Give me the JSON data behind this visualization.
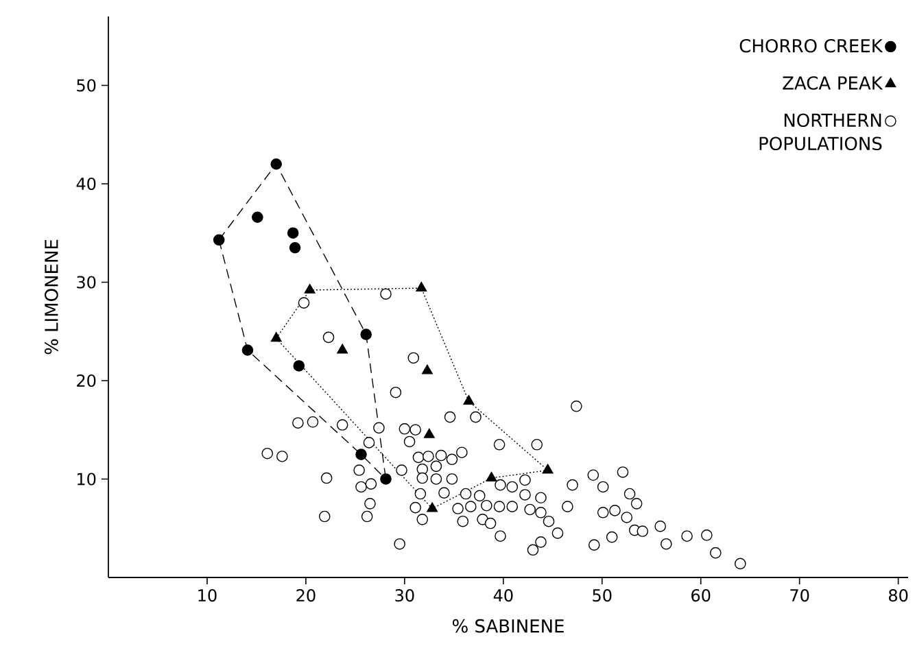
{
  "chart_data": {
    "type": "scatter",
    "xlabel": "% SABINENE",
    "ylabel": "% LIMONENE",
    "xlim": [
      0,
      81
    ],
    "ylim": [
      0,
      57
    ],
    "xticks": [
      10,
      20,
      30,
      40,
      50,
      60,
      70,
      80
    ],
    "yticks": [
      10,
      20,
      30,
      40,
      50
    ],
    "grid": false,
    "legend": "top right",
    "series": [
      {
        "name": "CHORRO CREEK",
        "marker": "circle",
        "color": "#000000",
        "x": [
          17.0,
          11.2,
          15.1,
          18.7,
          18.9,
          14.1,
          19.3,
          26.1,
          25.6,
          28.1
        ],
        "values": [
          42.0,
          34.3,
          36.6,
          35.0,
          33.5,
          23.1,
          21.5,
          24.7,
          12.5,
          10.0
        ]
      },
      {
        "name": "ZACA PEAK",
        "marker": "triangle",
        "color": "#000000",
        "x": [
          20.4,
          17.0,
          23.7,
          31.7,
          32.3,
          32.5,
          36.5,
          38.8,
          44.5,
          32.8
        ],
        "values": [
          29.2,
          24.3,
          23.1,
          29.4,
          21.0,
          14.5,
          17.9,
          10.1,
          10.9,
          7.0
        ]
      },
      {
        "name": "NORTHERN POPULATIONS",
        "marker": "circle",
        "color": "#ffffff",
        "x": [
          19.8,
          28.1,
          22.3,
          30.9,
          29.1,
          19.2,
          20.7,
          23.7,
          16.1,
          17.6,
          22.1,
          27.4,
          21.9,
          26.4,
          25.4,
          25.6,
          26.6,
          26.5,
          26.2,
          29.7,
          29.5,
          30.0,
          31.1,
          30.5,
          31.4,
          32.4,
          33.7,
          34.8,
          35.8,
          34.6,
          37.2,
          31.8,
          33.2,
          31.8,
          33.2,
          34.8,
          31.6,
          34.0,
          31.1,
          31.8,
          36.2,
          37.6,
          35.4,
          36.7,
          38.3,
          35.9,
          37.9,
          38.7,
          39.6,
          43.4,
          39.7,
          40.9,
          42.2,
          39.6,
          40.9,
          42.2,
          43.8,
          42.7,
          43.8,
          39.7,
          43.0,
          43.8,
          45.5,
          44.6,
          47.4,
          47.0,
          46.5,
          49.1,
          50.1,
          52.1,
          49.2,
          51.0,
          50.1,
          51.3,
          52.8,
          53.5,
          52.5,
          53.3,
          54.1,
          55.9,
          56.5,
          58.6,
          60.6,
          61.5,
          64.0
        ],
        "values": [
          27.9,
          28.8,
          24.4,
          22.3,
          18.8,
          15.7,
          15.8,
          15.5,
          12.6,
          12.3,
          10.1,
          15.2,
          6.2,
          13.7,
          10.9,
          9.2,
          9.5,
          7.5,
          6.2,
          10.9,
          3.4,
          15.1,
          15.0,
          13.8,
          12.2,
          12.3,
          12.4,
          12.0,
          12.7,
          16.3,
          16.3,
          11.0,
          11.3,
          10.1,
          10.0,
          10.0,
          8.5,
          8.6,
          7.1,
          5.9,
          8.5,
          8.3,
          7.0,
          7.2,
          7.3,
          5.7,
          5.9,
          5.5,
          13.5,
          13.5,
          9.4,
          9.2,
          9.9,
          7.2,
          7.2,
          8.4,
          8.1,
          6.9,
          6.6,
          4.2,
          2.8,
          3.6,
          4.5,
          5.7,
          17.4,
          9.4,
          7.2,
          10.4,
          9.2,
          10.7,
          3.3,
          4.1,
          6.6,
          6.8,
          8.5,
          7.5,
          6.1,
          4.8,
          4.7,
          5.2,
          3.4,
          4.2,
          4.3,
          2.5,
          1.4
        ]
      },
      {
        "type": "line",
        "line_style": "dashed",
        "marker": "none",
        "color": "#000000",
        "x": [
          11.2,
          17.0,
          26.1,
          28.1
        ],
        "values": [
          34.3,
          42.0,
          24.7,
          10.0
        ]
      },
      {
        "type": "line",
        "line_style": "dashed",
        "marker": "none",
        "color": "#000000",
        "x": [
          11.2,
          14.1,
          25.6,
          28.1
        ],
        "values": [
          34.3,
          23.1,
          12.5,
          10.0
        ]
      },
      {
        "type": "line",
        "line_style": "dotted",
        "marker": "none",
        "color": "#000000",
        "x": [
          17.0,
          20.4,
          31.7,
          36.5,
          44.5
        ],
        "values": [
          24.3,
          29.2,
          29.4,
          17.9,
          10.9
        ]
      },
      {
        "type": "line",
        "line_style": "dotted",
        "marker": "none",
        "color": "#000000",
        "x": [
          17.0,
          32.8,
          38.8,
          44.5
        ],
        "values": [
          24.3,
          7.0,
          10.1,
          10.9
        ]
      }
    ]
  }
}
